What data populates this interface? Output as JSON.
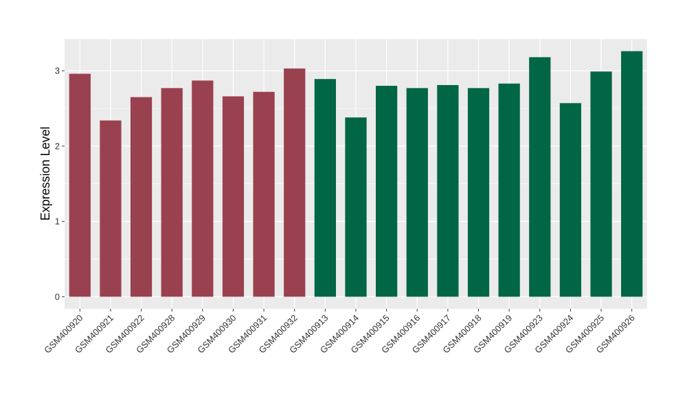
{
  "chart_data": {
    "type": "bar",
    "title": "",
    "xlabel": "",
    "ylabel": "Expression Level",
    "ylim": [
      -0.16,
      3.42
    ],
    "yticks": [
      0,
      1,
      2,
      3
    ],
    "grid": true,
    "legend": "none",
    "categories": [
      "GSM400920",
      "GSM400921",
      "GSM400922",
      "GSM400928",
      "GSM400929",
      "GSM400930",
      "GSM400931",
      "GSM400932",
      "GSM400913",
      "GSM400914",
      "GSM400915",
      "GSM400916",
      "GSM400917",
      "GSM400918",
      "GSM400919",
      "GSM400923",
      "GSM400924",
      "GSM400925",
      "GSM400926"
    ],
    "values": [
      2.96,
      2.34,
      2.65,
      2.77,
      2.87,
      2.66,
      2.72,
      3.03,
      2.89,
      2.38,
      2.8,
      2.77,
      2.81,
      2.77,
      2.83,
      3.18,
      2.57,
      2.99,
      3.26
    ],
    "groups": [
      0,
      0,
      0,
      0,
      0,
      0,
      0,
      0,
      1,
      1,
      1,
      1,
      1,
      1,
      1,
      1,
      1,
      1,
      1
    ],
    "colors": [
      "#9a414f",
      "#006645"
    ],
    "panel_background": "#ebebeb",
    "gridline_color": "#ffffff"
  }
}
